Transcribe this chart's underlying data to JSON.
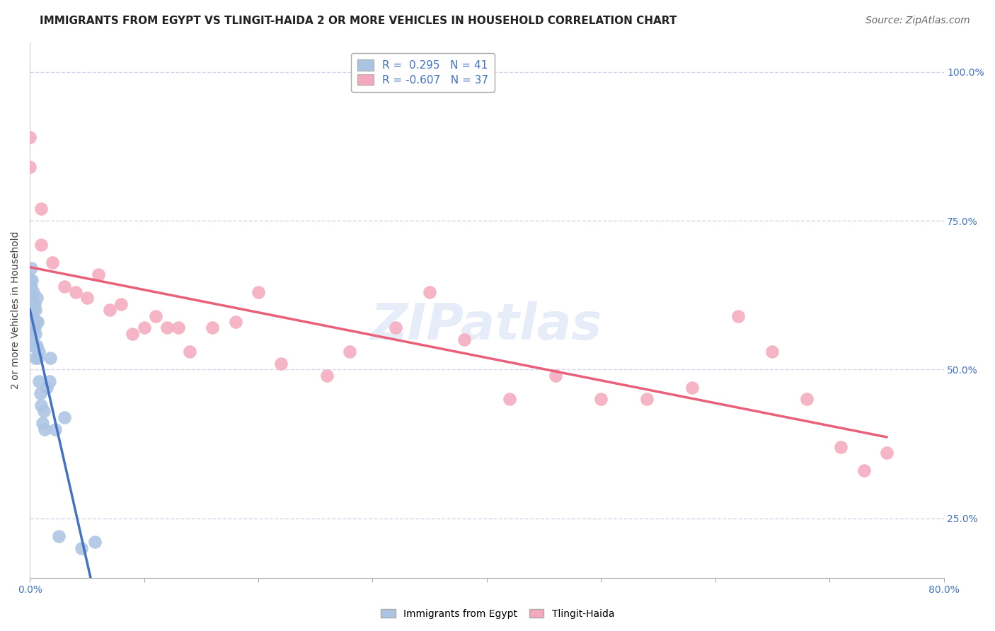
{
  "title": "IMMIGRANTS FROM EGYPT VS TLINGIT-HAIDA 2 OR MORE VEHICLES IN HOUSEHOLD CORRELATION CHART",
  "source": "Source: ZipAtlas.com",
  "ylabel": "2 or more Vehicles in Household",
  "x_min": 0.0,
  "x_max": 0.8,
  "y_min": 0.15,
  "y_max": 1.05,
  "x_tick_positions": [
    0.0,
    0.1,
    0.2,
    0.3,
    0.4,
    0.5,
    0.6,
    0.7,
    0.8
  ],
  "x_tick_labels": [
    "0.0%",
    "",
    "",
    "",
    "",
    "",
    "",
    "",
    "80.0%"
  ],
  "y_tick_positions": [
    0.25,
    0.5,
    0.75,
    1.0
  ],
  "y_tick_labels": [
    "25.0%",
    "50.0%",
    "75.0%",
    "100.0%"
  ],
  "legend_r1": "R =  0.295   N = 41",
  "legend_r2": "R = -0.607   N = 37",
  "color_blue": "#aac4e2",
  "color_pink": "#f5a8bc",
  "trendline_blue": "#4472c4",
  "trendline_pink": "#e8607a",
  "trendline_gray": "#b8c8d8",
  "background_color": "#ffffff",
  "grid_color": "#d0d8e8",
  "blue_scatter_x": [
    0.0,
    0.0,
    0.0,
    0.001,
    0.001,
    0.001,
    0.001,
    0.002,
    0.002,
    0.002,
    0.002,
    0.003,
    0.003,
    0.003,
    0.003,
    0.004,
    0.004,
    0.004,
    0.005,
    0.005,
    0.005,
    0.006,
    0.006,
    0.006,
    0.007,
    0.007,
    0.008,
    0.008,
    0.009,
    0.01,
    0.011,
    0.012,
    0.013,
    0.015,
    0.017,
    0.018,
    0.022,
    0.025,
    0.03,
    0.045,
    0.057
  ],
  "blue_scatter_y": [
    0.56,
    0.6,
    0.65,
    0.58,
    0.61,
    0.64,
    0.67,
    0.57,
    0.59,
    0.62,
    0.65,
    0.54,
    0.57,
    0.6,
    0.63,
    0.54,
    0.57,
    0.61,
    0.52,
    0.56,
    0.6,
    0.54,
    0.58,
    0.62,
    0.52,
    0.58,
    0.48,
    0.53,
    0.46,
    0.44,
    0.41,
    0.43,
    0.4,
    0.47,
    0.48,
    0.52,
    0.4,
    0.22,
    0.42,
    0.2,
    0.21
  ],
  "pink_scatter_x": [
    0.0,
    0.0,
    0.01,
    0.01,
    0.02,
    0.03,
    0.04,
    0.05,
    0.06,
    0.07,
    0.08,
    0.09,
    0.1,
    0.11,
    0.12,
    0.13,
    0.14,
    0.16,
    0.18,
    0.2,
    0.22,
    0.26,
    0.28,
    0.32,
    0.35,
    0.38,
    0.42,
    0.46,
    0.5,
    0.54,
    0.58,
    0.62,
    0.65,
    0.68,
    0.71,
    0.73,
    0.75
  ],
  "pink_scatter_y": [
    0.84,
    0.89,
    0.71,
    0.77,
    0.68,
    0.64,
    0.63,
    0.62,
    0.66,
    0.6,
    0.61,
    0.56,
    0.57,
    0.59,
    0.57,
    0.57,
    0.53,
    0.57,
    0.58,
    0.63,
    0.51,
    0.49,
    0.53,
    0.57,
    0.63,
    0.55,
    0.45,
    0.49,
    0.45,
    0.45,
    0.47,
    0.59,
    0.53,
    0.45,
    0.37,
    0.33,
    0.36
  ],
  "title_fontsize": 11,
  "axis_label_fontsize": 10,
  "tick_fontsize": 10,
  "legend_fontsize": 11,
  "source_fontsize": 10,
  "watermark_text": "ZIPatlas",
  "watermark_color": "#c8d8f0",
  "watermark_fontsize": 52,
  "watermark_alpha": 0.45
}
